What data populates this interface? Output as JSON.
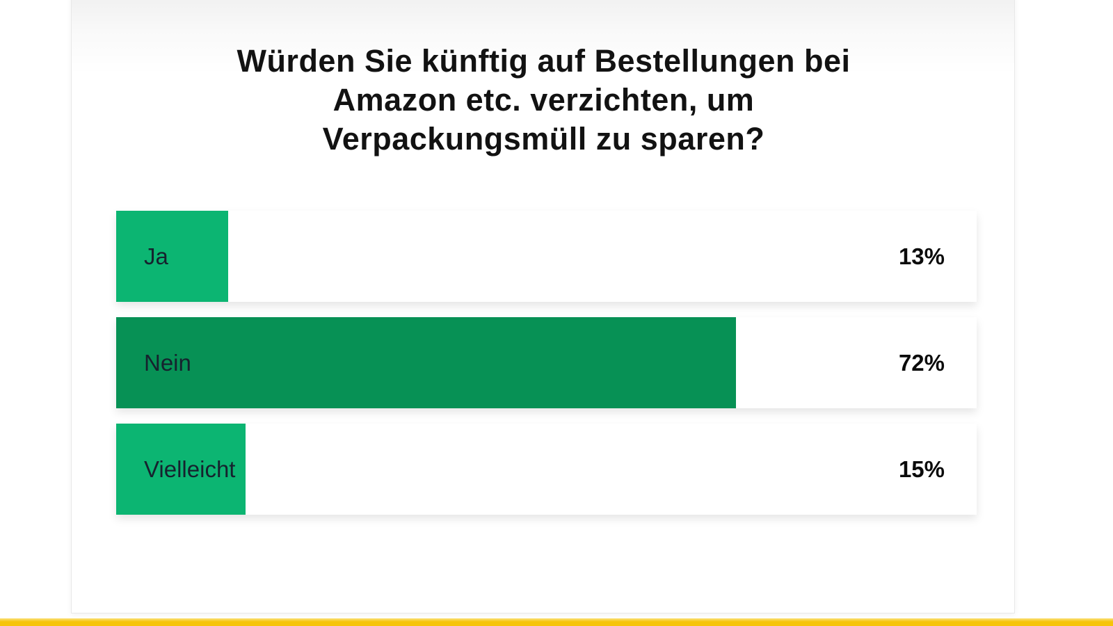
{
  "chart_data": {
    "type": "bar",
    "orientation": "horizontal",
    "title": "Würden Sie künftig auf Bestellungen bei Amazon etc. verzichten, um Verpackungsmüll zu sparen?",
    "title_lines": [
      "Würden Sie künftig auf Bestellungen bei",
      "Amazon etc. verzichten, um",
      "Verpackungsmüll zu sparen?"
    ],
    "categories": [
      "Ja",
      "Nein",
      "Vielleicht"
    ],
    "values": [
      13,
      72,
      15
    ],
    "value_labels": [
      "13%",
      "72%",
      "15%"
    ],
    "bar_colors": [
      "#0cb572",
      "#079155",
      "#0cb572"
    ],
    "track_color": "#ffffff",
    "xlim": [
      0,
      100
    ],
    "grid": false,
    "legend": false
  },
  "page": {
    "background": "#ffffff",
    "panel_border_color": "#e8e8e8",
    "bottom_accent_color": "#f6c40a",
    "bottom_accent_highlight": "#fbe07a",
    "title_color": "#121212",
    "label_color": "#16222e",
    "value_color": "#0b0b0b"
  }
}
